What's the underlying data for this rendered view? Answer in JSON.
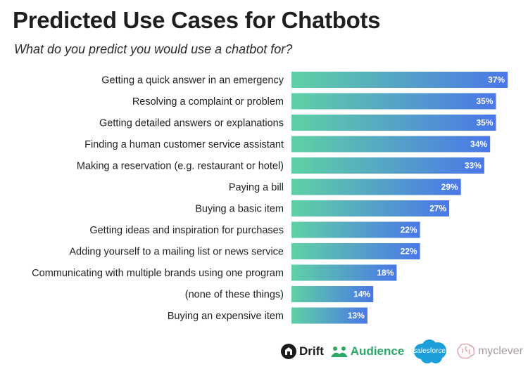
{
  "header": {
    "title": "Predicted Use Cases for Chatbots",
    "subtitle": "What do you predict you would use a chatbot for?"
  },
  "chart_data": {
    "type": "bar",
    "orientation": "horizontal",
    "categories": [
      "Getting a quick answer in an emergency",
      "Resolving a complaint or problem",
      "Getting detailed answers or explanations",
      "Finding a human customer service assistant",
      "Making a reservation (e.g. restaurant or hotel)",
      "Paying a bill",
      "Buying a basic item",
      "Getting ideas and inspiration for purchases",
      "Adding yourself to a mailing list or news service",
      "Communicating with multiple brands using one program",
      "(none of these things)",
      "Buying an expensive item"
    ],
    "values": [
      37,
      35,
      35,
      34,
      33,
      29,
      27,
      22,
      22,
      18,
      14,
      13
    ],
    "value_labels": [
      "37%",
      "35%",
      "35%",
      "34%",
      "33%",
      "29%",
      "27%",
      "22%",
      "22%",
      "18%",
      "14%",
      "13%"
    ],
    "unit": "%",
    "grid": false,
    "legend": "none",
    "colors": {
      "gradient_start": "#5fd1a4",
      "gradient_end": "#4a77e8"
    }
  },
  "logos": {
    "drift": {
      "text": "Drift",
      "icon": "drift-icon"
    },
    "audience": {
      "text": "Audience",
      "icon": "audience-icon"
    },
    "salesforce": {
      "text": "salesforce",
      "icon": "salesforce-cloud-icon"
    },
    "myclever": {
      "text": "myclever",
      "icon": "brain-icon"
    }
  }
}
